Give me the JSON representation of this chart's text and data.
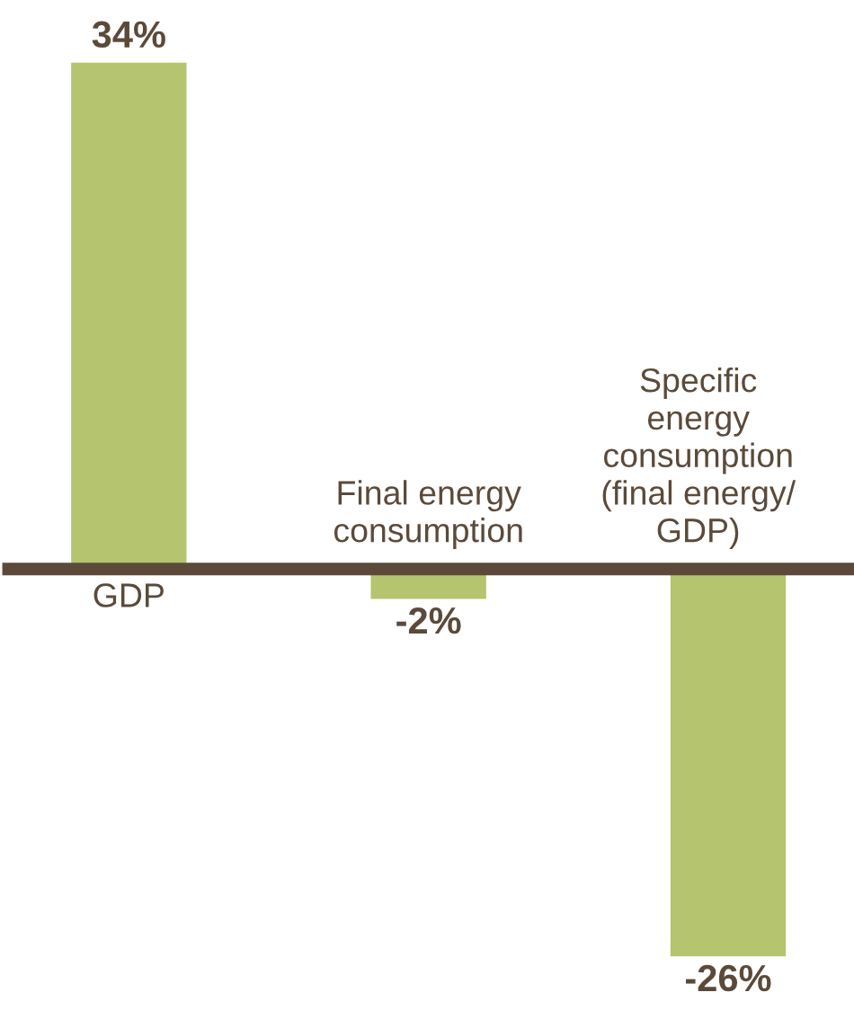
{
  "chart_data": {
    "type": "bar",
    "categories": [
      "GDP",
      "Final energy\nconsumption",
      "Specific\nenergy\nconsumption\n(final energy/\nGDP)"
    ],
    "values": [
      34,
      -2,
      -26
    ],
    "value_labels": [
      "34%",
      "-2%",
      "-26%"
    ],
    "color": "#b5c46e"
  }
}
